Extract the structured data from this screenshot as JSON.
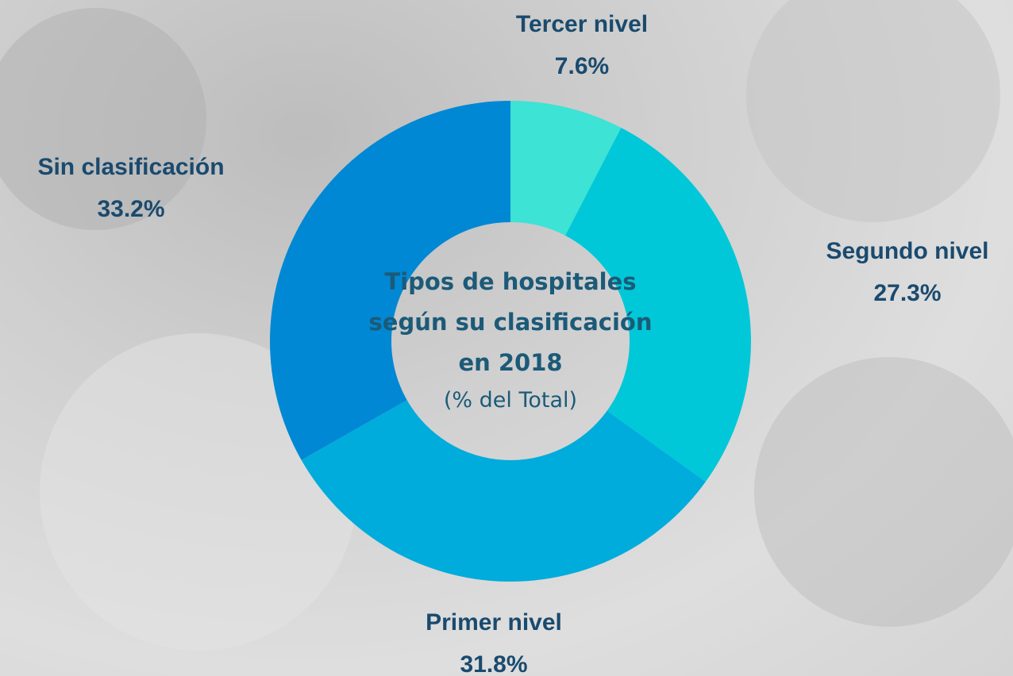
{
  "chart_data": {
    "type": "donut",
    "title": "Tipos de hospitales según su clasificación en 2018",
    "subtitle": "(% del Total)",
    "categories": [
      "Tercer nivel",
      "Segundo nivel",
      "Primer nivel",
      "Sin clasificación"
    ],
    "values": [
      7.6,
      27.3,
      31.8,
      33.2
    ],
    "value_labels": [
      "7.6%",
      "27.3%",
      "31.8%",
      "33.2%"
    ],
    "colors": [
      "#3de3d4",
      "#00c8d8",
      "#00acdc",
      "#0088d4"
    ]
  }
}
